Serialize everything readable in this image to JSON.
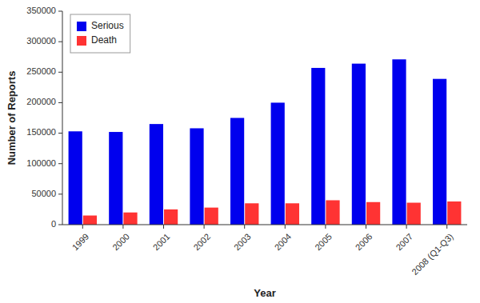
{
  "chart_data": {
    "type": "bar",
    "categories": [
      "1999",
      "2000",
      "2001",
      "2002",
      "2003",
      "2004",
      "2005",
      "2006",
      "2007",
      "2008 (Q1-Q3)"
    ],
    "series": [
      {
        "name": "Serious",
        "color": "#0000EE",
        "values": [
          153000,
          152000,
          165000,
          158000,
          175000,
          200000,
          257000,
          264000,
          271000,
          239000
        ]
      },
      {
        "name": "Death",
        "color": "#FF3333",
        "values": [
          15000,
          20000,
          25000,
          28000,
          35000,
          35000,
          40000,
          37000,
          36000,
          38000
        ]
      }
    ],
    "xlabel": "Year",
    "ylabel": "Number of Reports",
    "ylim": [
      0,
      350000
    ],
    "yticks": [
      0,
      50000,
      100000,
      150000,
      200000,
      250000,
      300000,
      350000
    ],
    "legend": "upper-left",
    "grid": false
  }
}
